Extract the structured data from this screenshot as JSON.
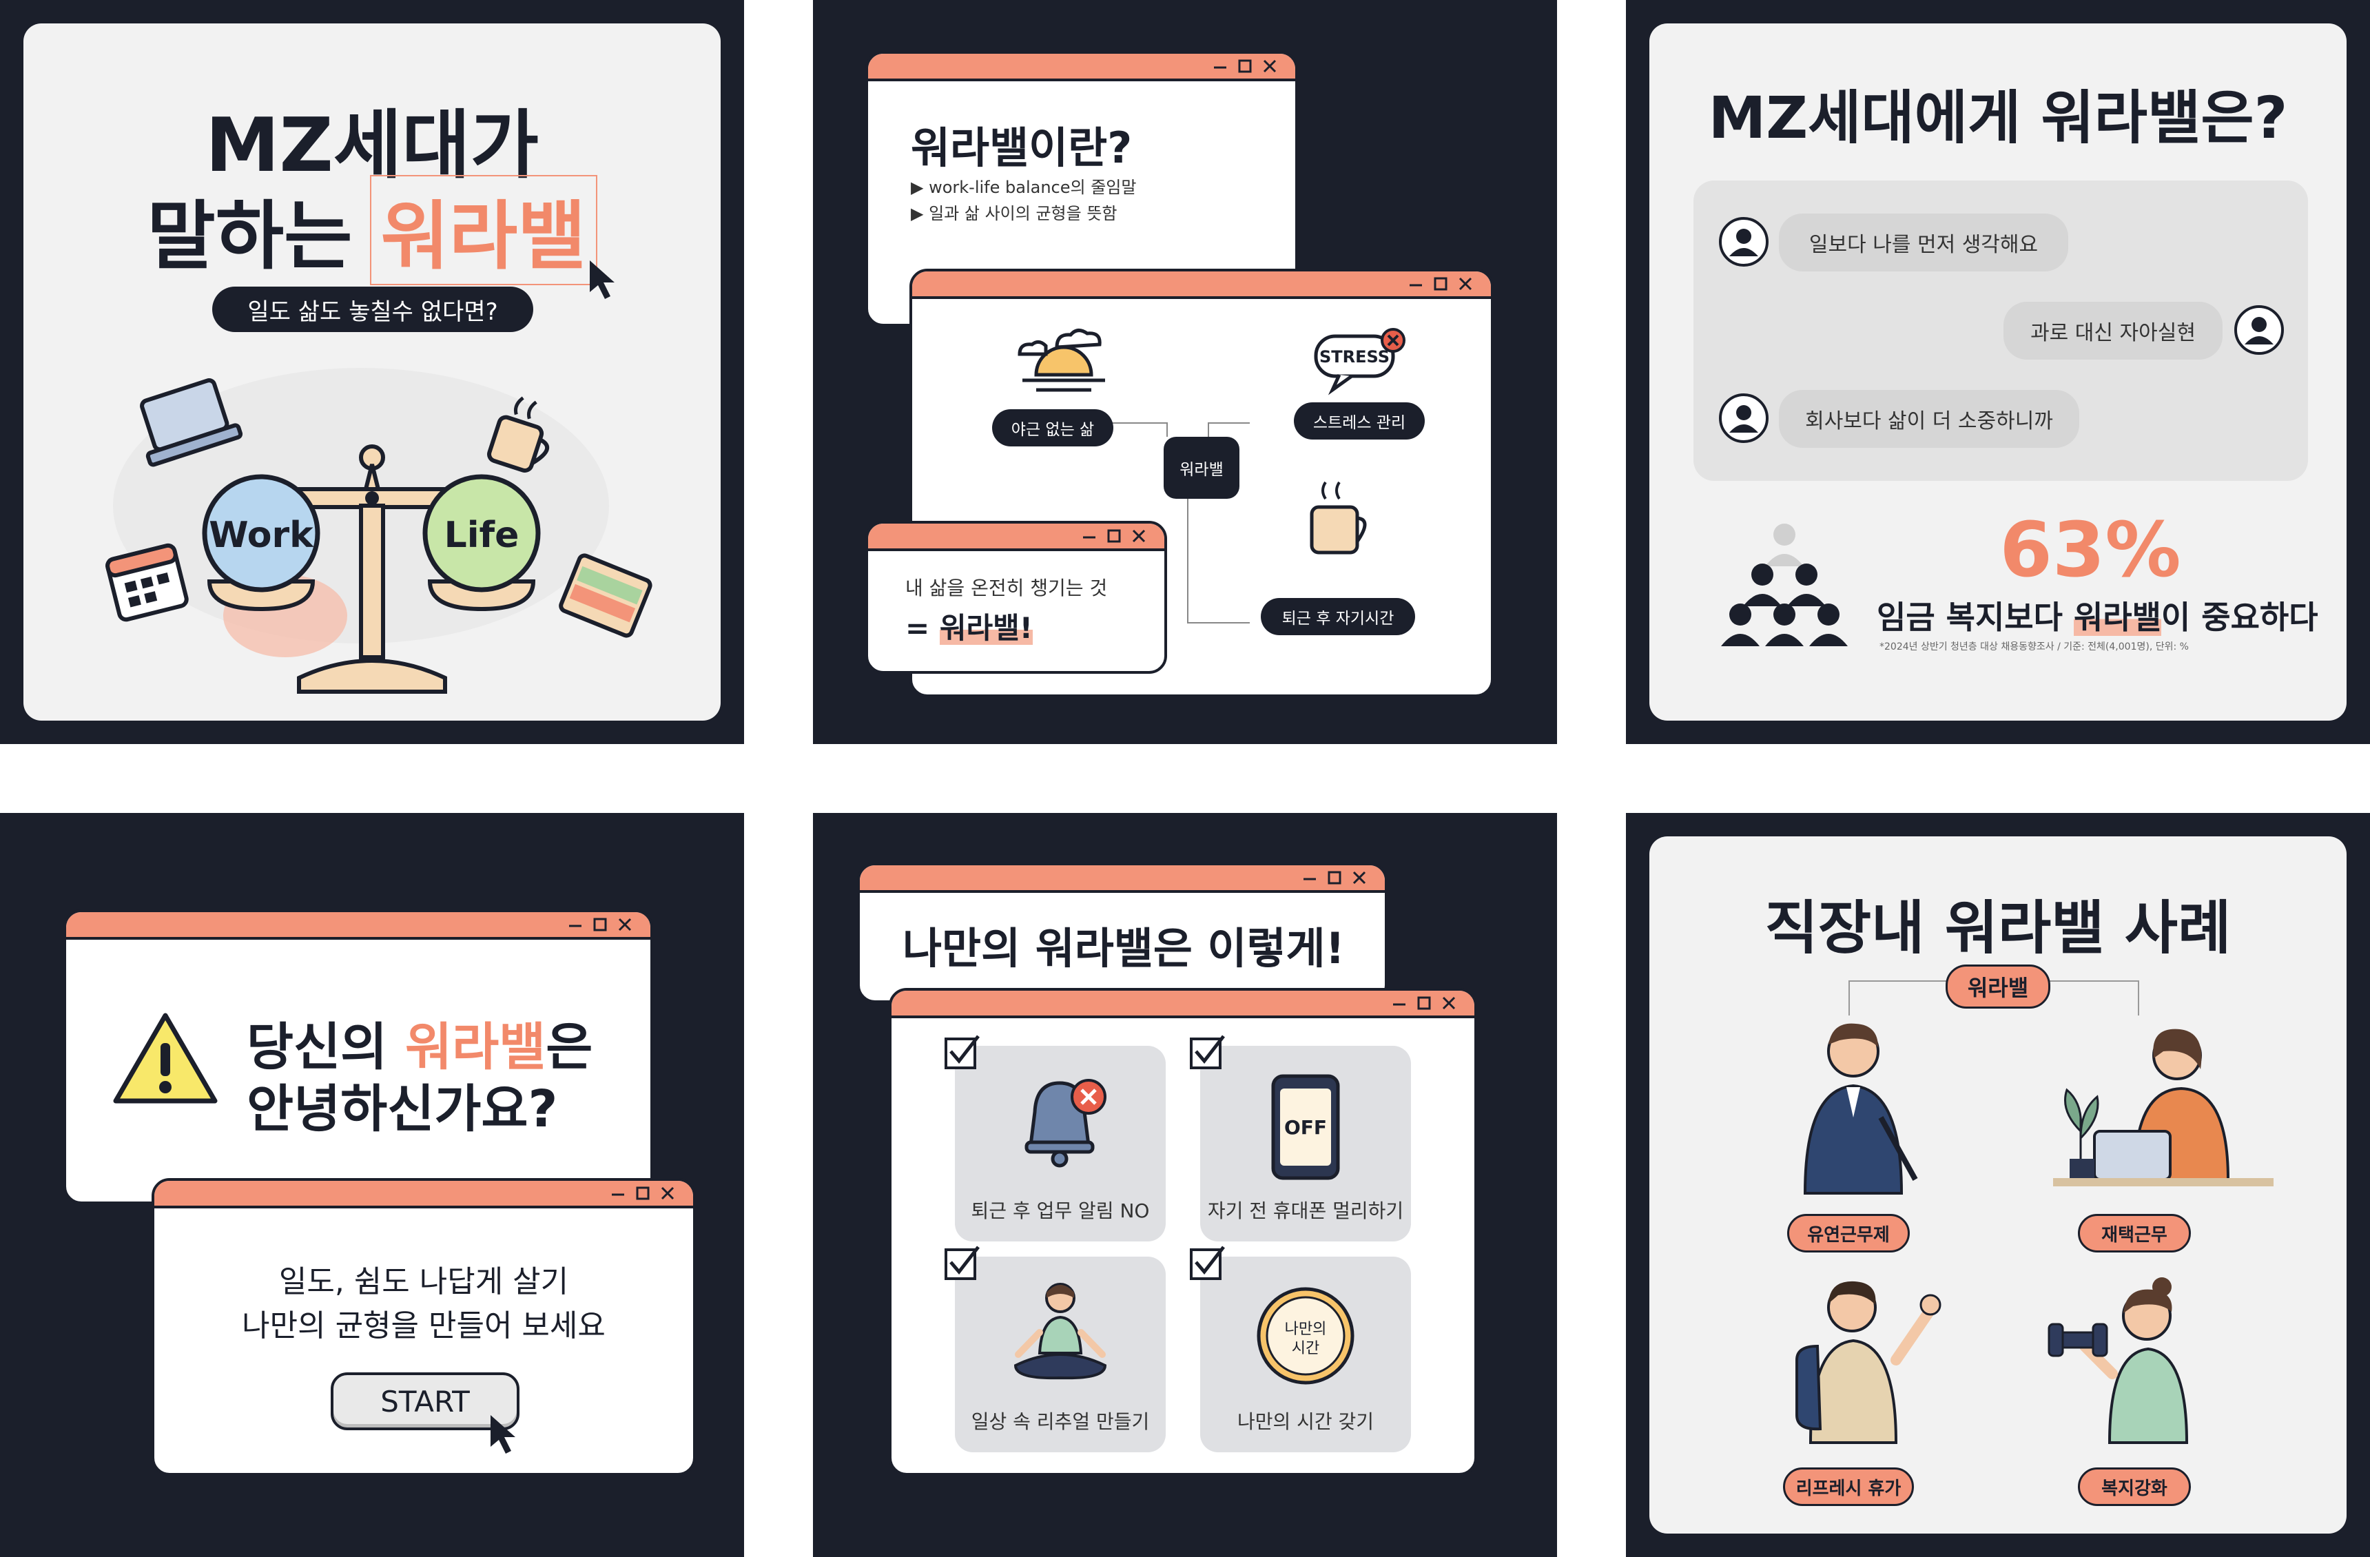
{
  "panel1": {
    "title_line1": "MZ세대가",
    "title_line2_a": "말하는",
    "title_line2_b": "워라밸",
    "subtitle": "일도 삶도 놓칠수 없다면?",
    "work_label": "Work",
    "life_label": "Life"
  },
  "panel2": {
    "title": "워라밸이란?",
    "bullet1": "▶ work-life balance의 줄임말",
    "bullet2": "▶ 일과 삶 사이의 균형을 뜻함",
    "node_center": "워라밸",
    "node_night": "야근 없는 삶",
    "node_stress": "스트레스 관리",
    "node_after": "퇴근 후 자기시간",
    "stress_icon_text": "STRESS",
    "note_line1": "내 삶을 온전히 챙기는 것",
    "note_line2_a": "= ",
    "note_line2_b": "워라밸!"
  },
  "panel3": {
    "title": "MZ세대에게 워라밸은?",
    "chat1": "일보다 나를 먼저 생각해요",
    "chat2": "과로 대신 자아실현",
    "chat3": "회사보다 삶이 더 소중하니까",
    "percent": "63%",
    "stat_a": "임금 복지보다 ",
    "stat_b": "워라밸",
    "stat_c": "이 중요하다",
    "source": "*2024년 상반기 청년층 대상 채용동향조사 / 기준: 전체(4,001명), 단위: %"
  },
  "panel4": {
    "title_line1_a": "당신의 ",
    "title_line1_b": "워라밸",
    "title_line1_c": "은",
    "title_line2": "안녕하신가요?",
    "body_line1": "일도, 쉼도 나답게 살기",
    "body_line2": "나만의 균형을 만들어 보세요",
    "start_button": "START"
  },
  "panel5": {
    "title": "나만의 워라밸은 이렇게!",
    "item1": "퇴근 후 업무 알림 NO",
    "item2": "자기 전 휴대폰 멀리하기",
    "item3": "일상 속 리추얼 만들기",
    "item4": "나만의 시간 갖기",
    "phone_text": "OFF",
    "clock_text_line1": "나만의",
    "clock_text_line2": "시간"
  },
  "panel6": {
    "title": "직장내 워라밸 사례",
    "center": "워라밸",
    "case1": "유연근무제",
    "case2": "재택근무",
    "case3": "리프레시 휴가",
    "case4": "복지강화"
  },
  "colors": {
    "navy": "#1b1f2b",
    "salmon": "#f39479",
    "card": "#f2f2f2",
    "highlight": "#f2896a"
  }
}
